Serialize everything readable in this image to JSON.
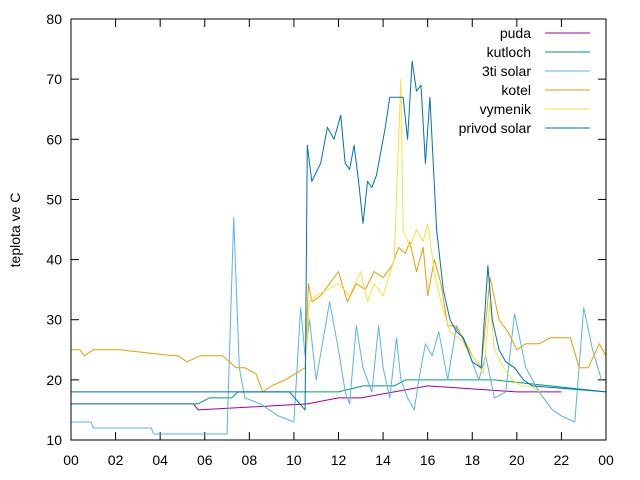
{
  "chart_data": {
    "type": "line",
    "title": "",
    "ylabel": "teplota ve C",
    "xlabel": "",
    "ylim": [
      10,
      80
    ],
    "xlim": [
      0,
      24
    ],
    "x_tick_labels": [
      "00",
      "02",
      "04",
      "06",
      "08",
      "10",
      "12",
      "14",
      "16",
      "18",
      "20",
      "22",
      "00"
    ],
    "y_tick_labels": [
      "10",
      "20",
      "30",
      "40",
      "50",
      "60",
      "70",
      "80"
    ],
    "grid": false,
    "legend_position": "top-right",
    "series": [
      {
        "name": "puda",
        "color": "#a0009f",
        "x": [
          0,
          5.5,
          5.7,
          10.6,
          12.0,
          13.0,
          14.5,
          16.0,
          20.0,
          22.0
        ],
        "y": [
          16,
          16,
          15,
          16,
          17,
          17,
          18,
          19,
          18,
          18
        ]
      },
      {
        "name": "kutloch",
        "color": "#009e73",
        "x": [
          0,
          5.5,
          5.7,
          6.2,
          6.6,
          7.2,
          7.5,
          10.6,
          12.0,
          13.1,
          14.5,
          15.0,
          16.0,
          18.0,
          19.0,
          24.0
        ],
        "y": [
          16,
          16,
          16,
          17,
          17,
          17,
          18,
          18,
          18,
          19,
          19,
          20,
          20,
          20,
          20,
          18
        ]
      },
      {
        "name": "3ti solar",
        "color": "#56b4e9",
        "x": [
          0,
          0.9,
          1.0,
          3.6,
          3.7,
          7.0,
          7.3,
          7.55,
          7.8,
          8.5,
          9.3,
          10.0,
          10.3,
          10.5,
          10.7,
          11.0,
          11.6,
          12.0,
          12.3,
          12.5,
          12.8,
          13.1,
          13.5,
          13.8,
          14.0,
          14.3,
          14.6,
          14.8,
          15.1,
          15.4,
          15.6,
          15.9,
          16.2,
          16.5,
          16.9,
          17.3,
          17.8,
          18.3,
          18.6,
          19.0,
          19.5,
          19.9,
          20.4,
          21.0,
          21.6,
          22.0,
          22.6,
          23.0,
          23.4,
          23.8
        ],
        "y": [
          13,
          13,
          12,
          12,
          11,
          11,
          47,
          22,
          17,
          16,
          14,
          13,
          32,
          24,
          30,
          20,
          33,
          25,
          18,
          16,
          29,
          22,
          18,
          29,
          22,
          17,
          27,
          20,
          17,
          15,
          20,
          26,
          24,
          28,
          20,
          29,
          25,
          20,
          24,
          17,
          18,
          31,
          22,
          18,
          15,
          14,
          13,
          32,
          25,
          20
        ]
      },
      {
        "name": "kotel",
        "color": "#e69f00",
        "x": [
          0,
          0.4,
          0.6,
          1.0,
          2.2,
          4.6,
          4.8,
          5.2,
          5.8,
          6.8,
          7.4,
          7.8,
          8.3,
          8.6,
          9.0,
          9.6,
          10.5,
          10.65,
          10.8,
          11.2,
          11.6,
          12.0,
          12.4,
          12.8,
          13.2,
          13.6,
          14.0,
          14.4,
          14.7,
          15.0,
          15.2,
          15.5,
          15.8,
          16.0,
          16.3,
          16.6,
          16.9,
          17.2,
          17.6,
          18.0,
          18.4,
          18.8,
          19.2,
          19.6,
          20.0,
          20.4,
          21.0,
          21.5,
          22.0,
          22.4,
          22.8,
          23.2,
          23.7,
          24.0
        ],
        "y": [
          25,
          25,
          24,
          25,
          25,
          24,
          24,
          23,
          24,
          24,
          22,
          22,
          21,
          18,
          19,
          20,
          22,
          36,
          33,
          34,
          36,
          38,
          33,
          36,
          35,
          38,
          37,
          39,
          42,
          41,
          43,
          38,
          42,
          34,
          40,
          36,
          29,
          29,
          27,
          24,
          22,
          37,
          30,
          28,
          25,
          26,
          26,
          27,
          27,
          27,
          22,
          22,
          26,
          24
        ]
      },
      {
        "name": "vymenik",
        "color": "#f0e442",
        "x": [
          10.5,
          10.7,
          11.0,
          11.5,
          12.0,
          12.5,
          13.0,
          13.3,
          13.6,
          14.0,
          14.5,
          14.8,
          14.9,
          15.0,
          15.2,
          15.5,
          15.8,
          16.0,
          16.3,
          16.6,
          17.0,
          17.4,
          17.8,
          18.2,
          18.5,
          18.8,
          19.0,
          19.4,
          19.8,
          20.2,
          20.6,
          21.0
        ],
        "y": [
          22,
          33,
          34,
          35,
          36,
          34,
          38,
          33,
          36,
          34,
          40,
          70,
          45,
          44,
          42,
          45,
          43,
          46,
          38,
          33,
          28,
          27,
          25,
          23,
          21,
          33,
          25,
          22,
          20,
          19,
          19,
          18
        ]
      },
      {
        "name": "privod solar",
        "color": "#0072b2",
        "x": [
          0,
          5.5,
          6.2,
          7.4,
          9.8,
          10.5,
          10.6,
          10.8,
          11.2,
          11.5,
          11.8,
          12.1,
          12.3,
          12.5,
          12.7,
          12.9,
          13.1,
          13.3,
          13.5,
          13.7,
          13.9,
          14.1,
          14.3,
          14.6,
          14.9,
          15.1,
          15.3,
          15.5,
          15.7,
          15.9,
          16.1,
          16.4,
          16.7,
          17.0,
          17.3,
          17.6,
          18.0,
          18.4,
          18.7,
          18.9,
          19.2,
          19.5,
          19.9,
          20.3,
          20.7,
          24.0
        ],
        "y": [
          18,
          18,
          18,
          18,
          18,
          15,
          59,
          53,
          56,
          62,
          60,
          64,
          56,
          55,
          59,
          53,
          46,
          53,
          52,
          54,
          58,
          62,
          67,
          67,
          67,
          60,
          73,
          68,
          69,
          56,
          67,
          45,
          35,
          30,
          28,
          27,
          23,
          22,
          39,
          30,
          25,
          23,
          22,
          20,
          19,
          18
        ]
      }
    ]
  }
}
